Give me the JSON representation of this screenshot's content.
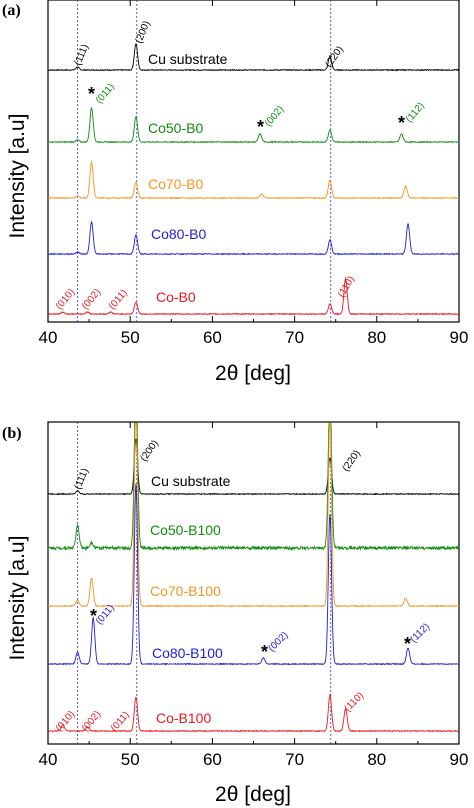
{
  "chart_data": [
    {
      "panel": "(a)",
      "type": "line",
      "xlabel": "2θ [deg]",
      "ylabel": "Intensity [a.u]",
      "xlim": [
        40,
        90
      ],
      "xticks": [
        40,
        50,
        60,
        70,
        80,
        90
      ],
      "reference_lines_x": [
        43.6,
        50.8,
        74.4
      ],
      "series": [
        {
          "name": "Cu substrate",
          "color": "#000000",
          "peaks": [
            [
              43.6,
              3
            ],
            [
              50.7,
              26
            ],
            [
              74.3,
              14
            ]
          ]
        },
        {
          "name": "Co50-B0",
          "color": "#118c11",
          "peaks": [
            [
              43.6,
              2
            ],
            [
              45.3,
              34
            ],
            [
              50.7,
              25
            ],
            [
              65.8,
              8
            ],
            [
              74.3,
              12
            ],
            [
              83.0,
              8
            ]
          ]
        },
        {
          "name": "Co70-B0",
          "color": "#f7941d",
          "peaks": [
            [
              43.6,
              2
            ],
            [
              45.3,
              36
            ],
            [
              50.7,
              16
            ],
            [
              66.0,
              4
            ],
            [
              74.3,
              18
            ],
            [
              83.5,
              12
            ]
          ]
        },
        {
          "name": "Co80-B0",
          "color": "#1f1fd6",
          "peaks": [
            [
              43.6,
              2
            ],
            [
              45.3,
              32
            ],
            [
              50.7,
              19
            ],
            [
              74.3,
              14
            ],
            [
              83.8,
              30
            ]
          ]
        },
        {
          "name": "Co-B0",
          "color": "#e8191e",
          "peaks": [
            [
              41.8,
              2
            ],
            [
              44.8,
              2
            ],
            [
              47.6,
              2
            ],
            [
              50.7,
              12
            ],
            [
              74.3,
              10
            ],
            [
              76.2,
              36
            ]
          ]
        }
      ],
      "annotations": {
        "hkl_substrate": [
          "(111)",
          "(200)",
          "(220)"
        ],
        "hkl_co50": [
          "(011)",
          "(002)",
          "(112)"
        ],
        "hkl_cob0": [
          "(010)",
          "(002)",
          "(011)",
          "(110)"
        ],
        "star": "*"
      }
    },
    {
      "panel": "(b)",
      "type": "line",
      "xlabel": "2θ [deg]",
      "ylabel": "Intensity [a.u]",
      "xlim": [
        40,
        90
      ],
      "xticks": [
        40,
        50,
        60,
        70,
        80,
        90
      ],
      "reference_lines_x": [
        43.6,
        50.8,
        74.4
      ],
      "series": [
        {
          "name": "Cu substrate",
          "color": "#000000",
          "peaks": [
            [
              43.6,
              3
            ],
            [
              50.7,
              55
            ],
            [
              74.3,
              36
            ]
          ]
        },
        {
          "name": "Co50-B100",
          "color": "#118c11",
          "peaks": [
            [
              43.6,
              22
            ],
            [
              45.3,
              6
            ],
            [
              50.7,
              170
            ],
            [
              74.3,
              160
            ]
          ]
        },
        {
          "name": "Co70-B100",
          "color": "#f7941d",
          "peaks": [
            [
              43.6,
              6
            ],
            [
              45.3,
              28
            ],
            [
              50.7,
              200
            ],
            [
              74.3,
              190
            ],
            [
              83.5,
              8
            ]
          ]
        },
        {
          "name": "Co80-B100",
          "color": "#1f1fd6",
          "peaks": [
            [
              43.6,
              12
            ],
            [
              45.5,
              46
            ],
            [
              50.7,
              180
            ],
            [
              66.2,
              6
            ],
            [
              74.3,
              150
            ],
            [
              83.8,
              16
            ]
          ]
        },
        {
          "name": "Co-B100",
          "color": "#e8191e",
          "peaks": [
            [
              41.8,
              6
            ],
            [
              44.8,
              4
            ],
            [
              50.7,
              34
            ],
            [
              74.3,
              36
            ],
            [
              76.2,
              22
            ]
          ]
        }
      ],
      "annotations": {
        "hkl_substrate": [
          "(111)",
          "(200)",
          "(220)"
        ],
        "hkl_co80": [
          "(011)",
          "(002)",
          "(112)"
        ],
        "hkl_cob100": [
          "(010)",
          "(002)",
          "(011)",
          "(110)"
        ],
        "star": "*"
      }
    }
  ]
}
